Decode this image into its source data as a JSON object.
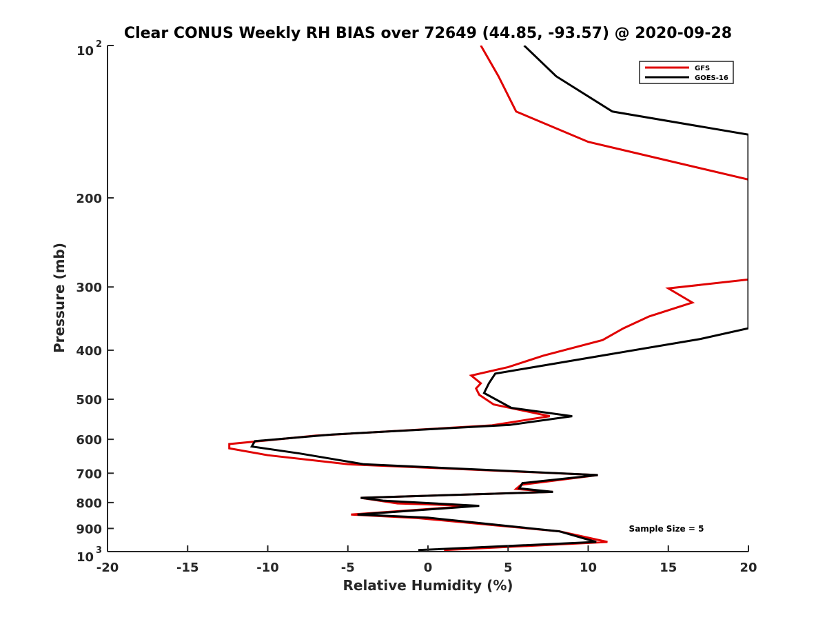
{
  "chart_data": {
    "type": "line",
    "title": "Clear CONUS Weekly RH BIAS over 72649 (44.85, -93.57) @ 2020-09-28",
    "xlabel": "Relative Humidity (%)",
    "ylabel": "Pressure (mb)",
    "xlim": [
      -20,
      20
    ],
    "ylim": [
      100,
      1000
    ],
    "y_scale": "log",
    "y_reversed": true,
    "grid": false,
    "legend_position": "top-right",
    "x_ticks": [
      -20,
      -15,
      -10,
      -5,
      0,
      5,
      10,
      15,
      20
    ],
    "x_tick_labels": [
      "-20",
      "-15",
      "-10",
      "-5",
      "0",
      "5",
      "10",
      "15",
      "20"
    ],
    "y_tick_labels": [
      {
        "value": 100,
        "base": "10",
        "exp": "2"
      },
      {
        "value": 200,
        "base": "200",
        "exp": ""
      },
      {
        "value": 300,
        "base": "300",
        "exp": ""
      },
      {
        "value": 400,
        "base": "400",
        "exp": ""
      },
      {
        "value": 500,
        "base": "500",
        "exp": ""
      },
      {
        "value": 600,
        "base": "600",
        "exp": ""
      },
      {
        "value": 700,
        "base": "700",
        "exp": ""
      },
      {
        "value": 800,
        "base": "800",
        "exp": ""
      },
      {
        "value": 900,
        "base": "900",
        "exp": ""
      },
      {
        "value": 1000,
        "base": "10",
        "exp": "3"
      }
    ],
    "annotation": "Sample Size = 5",
    "series": [
      {
        "name": "GFS",
        "color": "#e00000",
        "points": [
          [
            3.3,
            100
          ],
          [
            4.4,
            115
          ],
          [
            5.5,
            135
          ],
          [
            10.0,
            155
          ],
          [
            20.0,
            184
          ],
          [
            20.0,
            290
          ],
          [
            15.0,
            302
          ],
          [
            16.5,
            322
          ],
          [
            13.8,
            343
          ],
          [
            12.2,
            362
          ],
          [
            10.9,
            382
          ],
          [
            7.2,
            410
          ],
          [
            5.0,
            432
          ],
          [
            2.7,
            449
          ],
          [
            3.3,
            465
          ],
          [
            3.0,
            476
          ],
          [
            3.2,
            490
          ],
          [
            4.1,
            512
          ],
          [
            7.6,
            540
          ],
          [
            4.0,
            563
          ],
          [
            -7.0,
            590
          ],
          [
            -12.4,
            613
          ],
          [
            -12.4,
            625
          ],
          [
            -10.0,
            645
          ],
          [
            -5.0,
            672
          ],
          [
            10.6,
            706
          ],
          [
            5.8,
            738
          ],
          [
            5.5,
            752
          ],
          [
            7.8,
            762
          ],
          [
            -4.2,
            783
          ],
          [
            -1.9,
            803
          ],
          [
            2.8,
            812
          ],
          [
            -4.8,
            845
          ],
          [
            -0.7,
            858
          ],
          [
            8.2,
            912
          ],
          [
            11.2,
            957
          ],
          [
            1.0,
            993
          ]
        ]
      },
      {
        "name": "GOES-16",
        "color": "#000000",
        "points": [
          [
            6.0,
            100
          ],
          [
            8.0,
            115
          ],
          [
            11.5,
            135
          ],
          [
            20.0,
            150
          ],
          [
            20.0,
            362
          ],
          [
            17.0,
            380
          ],
          [
            8.5,
            422
          ],
          [
            4.2,
            445
          ],
          [
            3.8,
            465
          ],
          [
            3.5,
            486
          ],
          [
            5.2,
            520
          ],
          [
            9.0,
            540
          ],
          [
            5.1,
            562
          ],
          [
            -6.0,
            587
          ],
          [
            -10.8,
            605
          ],
          [
            -11.0,
            620
          ],
          [
            -8.0,
            640
          ],
          [
            -4.0,
            672
          ],
          [
            10.6,
            706
          ],
          [
            5.9,
            732
          ],
          [
            5.7,
            750
          ],
          [
            7.8,
            762
          ],
          [
            -4.2,
            783
          ],
          [
            -2.8,
            793
          ],
          [
            3.2,
            812
          ],
          [
            -4.4,
            845
          ],
          [
            0.0,
            857
          ],
          [
            8.2,
            912
          ],
          [
            10.5,
            957
          ],
          [
            -0.6,
            993
          ]
        ]
      }
    ]
  }
}
